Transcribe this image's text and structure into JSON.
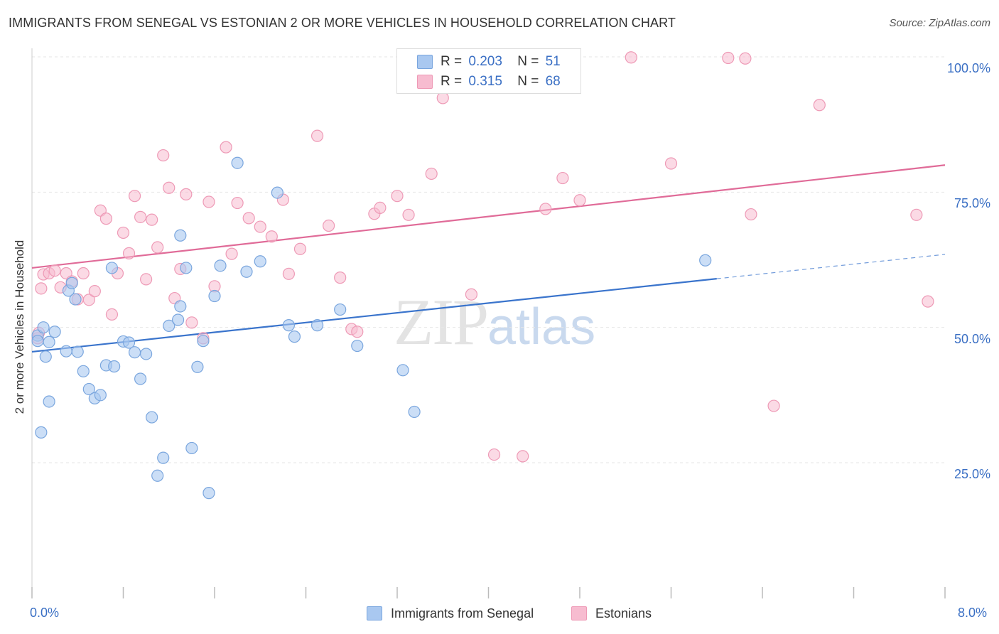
{
  "header": {
    "title": "IMMIGRANTS FROM SENEGAL VS ESTONIAN 2 OR MORE VEHICLES IN HOUSEHOLD CORRELATION CHART",
    "source": "Source: ZipAtlas.com"
  },
  "watermark": {
    "zip": "ZIP",
    "atlas": "atlas"
  },
  "legend": {
    "r_label": "R =",
    "n_label": "N =",
    "senegal": {
      "r": "0.203",
      "n": "51"
    },
    "estonians": {
      "r": "0.315",
      "n": "68"
    }
  },
  "colors": {
    "senegal_fill": "#a9c8f0",
    "senegal_stroke": "#7aa6de",
    "senegal_line": "#3a74cc",
    "estonians_fill": "#f7bcd0",
    "estonians_stroke": "#ee9ab6",
    "estonians_line": "#e06b98",
    "axis_text": "#3a6fc4",
    "grid": "#e6e6e6"
  },
  "chart_data": {
    "type": "scatter",
    "title": "IMMIGRANTS FROM SENEGAL VS ESTONIAN 2 OR MORE VEHICLES IN HOUSEHOLD CORRELATION CHART",
    "xlabel": "",
    "ylabel": "2 or more Vehicles in Household",
    "xlim": [
      0,
      8
    ],
    "ylim": [
      0,
      104
    ],
    "x_tick_labels": [
      "0.0%",
      "8.0%"
    ],
    "y_ticks": [
      25,
      50,
      75,
      100
    ],
    "y_tick_labels": [
      "25.0%",
      "50.0%",
      "75.0%",
      "100.0%"
    ],
    "grid": true,
    "legend_position": "top-center",
    "series": [
      {
        "name": "Immigrants from Senegal",
        "r": 0.203,
        "n": 51,
        "trend": {
          "x0": 0,
          "y0": 45.5,
          "x1": 6.0,
          "y1": 59.0,
          "dashed_to_x": 8.0,
          "dashed_to_y": 63.5
        },
        "points": [
          [
            0.05,
            48.5
          ],
          [
            0.1,
            50.0
          ],
          [
            0.12,
            44.6
          ],
          [
            0.15,
            47.3
          ],
          [
            0.2,
            49.2
          ],
          [
            0.05,
            47.5
          ],
          [
            0.3,
            45.6
          ],
          [
            0.32,
            56.8
          ],
          [
            0.35,
            58.2
          ],
          [
            0.38,
            55.2
          ],
          [
            0.45,
            41.9
          ],
          [
            0.5,
            38.6
          ],
          [
            0.55,
            36.9
          ],
          [
            0.6,
            37.5
          ],
          [
            0.65,
            43.0
          ],
          [
            0.7,
            61.0
          ],
          [
            0.72,
            42.8
          ],
          [
            0.8,
            47.4
          ],
          [
            0.85,
            47.2
          ],
          [
            0.9,
            45.4
          ],
          [
            0.95,
            40.5
          ],
          [
            1.0,
            45.1
          ],
          [
            1.05,
            33.4
          ],
          [
            1.1,
            22.6
          ],
          [
            1.15,
            25.9
          ],
          [
            1.2,
            50.3
          ],
          [
            1.28,
            51.4
          ],
          [
            1.3,
            53.9
          ],
          [
            1.35,
            61.0
          ],
          [
            1.4,
            27.7
          ],
          [
            1.45,
            42.7
          ],
          [
            1.5,
            47.5
          ],
          [
            1.55,
            19.4
          ],
          [
            1.6,
            55.8
          ],
          [
            1.65,
            61.4
          ],
          [
            1.8,
            80.4
          ],
          [
            1.88,
            60.3
          ],
          [
            2.0,
            62.2
          ],
          [
            2.15,
            74.9
          ],
          [
            2.25,
            50.4
          ],
          [
            2.3,
            48.3
          ],
          [
            2.5,
            50.4
          ],
          [
            2.7,
            53.3
          ],
          [
            2.85,
            46.6
          ],
          [
            3.25,
            42.1
          ],
          [
            3.35,
            34.4
          ],
          [
            5.9,
            62.4
          ],
          [
            0.08,
            30.6
          ],
          [
            0.15,
            36.3
          ],
          [
            0.4,
            45.5
          ],
          [
            1.3,
            67.0
          ]
        ]
      },
      {
        "name": "Estonians",
        "r": 0.315,
        "n": 68,
        "trend": {
          "x0": 0,
          "y0": 61.0,
          "x1": 8.0,
          "y1": 80.0
        },
        "points": [
          [
            0.05,
            48.0
          ],
          [
            0.08,
            57.2
          ],
          [
            0.1,
            59.8
          ],
          [
            0.15,
            60.0
          ],
          [
            0.2,
            60.5
          ],
          [
            0.25,
            57.4
          ],
          [
            0.3,
            60.0
          ],
          [
            0.35,
            58.5
          ],
          [
            0.4,
            55.2
          ],
          [
            0.45,
            60.0
          ],
          [
            0.5,
            55.1
          ],
          [
            0.55,
            56.7
          ],
          [
            0.6,
            71.6
          ],
          [
            0.65,
            70.1
          ],
          [
            0.7,
            52.4
          ],
          [
            0.75,
            60.0
          ],
          [
            0.8,
            67.5
          ],
          [
            0.85,
            63.7
          ],
          [
            0.9,
            74.3
          ],
          [
            0.95,
            70.4
          ],
          [
            1.0,
            58.9
          ],
          [
            1.05,
            69.9
          ],
          [
            1.1,
            64.8
          ],
          [
            1.15,
            81.8
          ],
          [
            1.2,
            75.8
          ],
          [
            1.25,
            55.4
          ],
          [
            1.3,
            60.8
          ],
          [
            1.35,
            74.6
          ],
          [
            1.4,
            50.9
          ],
          [
            1.5,
            48.0
          ],
          [
            1.55,
            73.2
          ],
          [
            1.6,
            57.6
          ],
          [
            1.7,
            83.3
          ],
          [
            1.75,
            63.6
          ],
          [
            1.8,
            73.0
          ],
          [
            1.9,
            70.2
          ],
          [
            2.0,
            68.6
          ],
          [
            2.1,
            66.8
          ],
          [
            2.2,
            73.6
          ],
          [
            2.25,
            59.9
          ],
          [
            2.35,
            64.5
          ],
          [
            2.5,
            85.4
          ],
          [
            2.6,
            68.8
          ],
          [
            2.7,
            59.2
          ],
          [
            2.8,
            49.7
          ],
          [
            2.85,
            49.2
          ],
          [
            3.0,
            71.0
          ],
          [
            3.05,
            72.1
          ],
          [
            3.2,
            74.3
          ],
          [
            3.3,
            70.8
          ],
          [
            3.5,
            78.4
          ],
          [
            3.6,
            92.4
          ],
          [
            3.85,
            56.1
          ],
          [
            4.05,
            26.5
          ],
          [
            4.3,
            26.2
          ],
          [
            4.5,
            71.9
          ],
          [
            4.65,
            77.6
          ],
          [
            4.8,
            73.5
          ],
          [
            5.25,
            99.9
          ],
          [
            5.6,
            80.3
          ],
          [
            6.1,
            99.8
          ],
          [
            6.25,
            99.7
          ],
          [
            6.3,
            70.9
          ],
          [
            6.5,
            35.5
          ],
          [
            6.9,
            91.1
          ],
          [
            7.75,
            70.8
          ],
          [
            7.85,
            54.8
          ],
          [
            0.06,
            49.0
          ]
        ]
      }
    ]
  },
  "bottom_legend": {
    "senegal": "Immigrants from Senegal",
    "estonians": "Estonians"
  }
}
